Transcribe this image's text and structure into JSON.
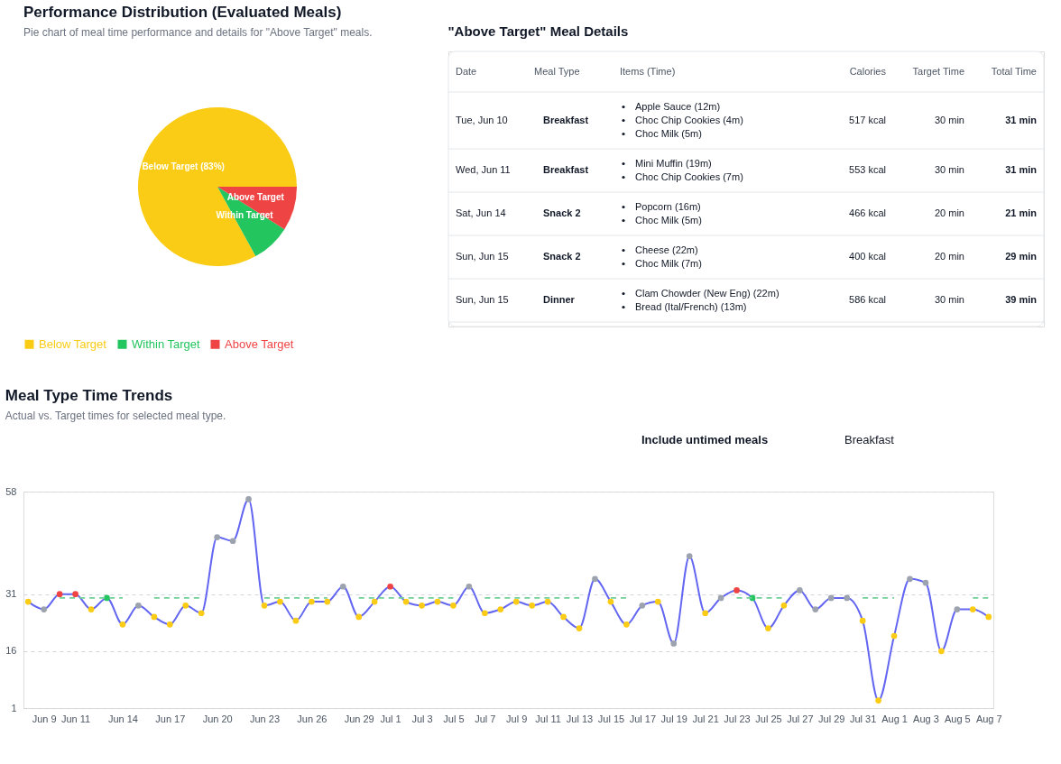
{
  "chart_data": [
    {
      "type": "pie",
      "title": "Performance Distribution (Evaluated Meals)",
      "subtitle": "Pie chart of meal time performance and details for \"Above Target\" meals.",
      "categories": [
        "Below Target",
        "Within Target",
        "Above Target"
      ],
      "values": [
        83,
        8,
        9
      ],
      "colors": [
        "#facc15",
        "#22c55e",
        "#ef4444"
      ],
      "value_labels": [
        "Below Target (83%)",
        "Within Target",
        "Above Target"
      ],
      "legend": "bottom"
    },
    {
      "type": "other",
      "title": "\"Above Target\" Meal Details",
      "categories": [
        "Date",
        "Meal Type",
        "Items (Time)",
        "Calories",
        "Target Time",
        "Total Time"
      ],
      "cell_labels": [
        [
          "Tue, Jun 10",
          "Breakfast",
          [
            "Apple Sauce (12m)",
            "Choc Chip Cookies (4m)",
            "Choc Milk (5m)"
          ],
          "517 kcal",
          "30 min",
          "31 min"
        ],
        [
          "Wed, Jun 11",
          "Breakfast",
          [
            "Mini Muffin (19m)",
            "Choc Chip Cookies (7m)"
          ],
          "553 kcal",
          "30 min",
          "31 min"
        ],
        [
          "Sat, Jun 14",
          "Snack 2",
          [
            "Popcorn (16m)",
            "Choc Milk (5m)"
          ],
          "466 kcal",
          "20 min",
          "21 min"
        ],
        [
          "Sun, Jun 15",
          "Snack 2",
          [
            "Cheese (22m)",
            "Choc Milk (7m)"
          ],
          "400 kcal",
          "20 min",
          "29 min"
        ],
        [
          "Sun, Jun 15",
          "Dinner",
          [
            "Clam Chowder (New Eng) (22m)",
            "Bread (Ital/French) (13m)"
          ],
          "586 kcal",
          "30 min",
          "39 min"
        ]
      ]
    },
    {
      "type": "line",
      "title": "Meal Type Time Trends",
      "subtitle": "Actual vs. Target times for selected meal type.",
      "annotations": [
        "Include untimed meals",
        "Breakfast"
      ],
      "categories": [
        null,
        "Jun 9",
        null,
        "Jun 11",
        null,
        null,
        "Jun 14",
        null,
        null,
        "Jun 17",
        null,
        null,
        "Jun 20",
        null,
        null,
        "Jun 23",
        null,
        null,
        "Jun 26",
        null,
        null,
        "Jun 29",
        null,
        "Jul 1",
        null,
        "Jul 3",
        null,
        "Jul 5",
        null,
        "Jul 7",
        null,
        "Jul 9",
        null,
        "Jul 11",
        null,
        "Jul 13",
        null,
        "Jul 15",
        null,
        "Jul 17",
        null,
        "Jul 19",
        null,
        "Jul 21",
        null,
        "Jul 23",
        null,
        "Jul 25",
        null,
        "Jul 27",
        null,
        "Jul 29",
        null,
        "Jul 31",
        null,
        "Aug 1",
        null,
        "Aug 3",
        null,
        "Aug 5",
        null,
        "Aug 7"
      ],
      "ylim": [
        1,
        58
      ],
      "yticks": [
        1,
        16,
        31,
        58
      ],
      "grid": "y",
      "series": [
        {
          "color": "#6366f1",
          "marker": "circle",
          "values": [
            29,
            27,
            31,
            31,
            27,
            30,
            23,
            28,
            25,
            23,
            28,
            26,
            46,
            45,
            56,
            28,
            29,
            24,
            29,
            29,
            33,
            25,
            29,
            33,
            29,
            28,
            29,
            28,
            33,
            26,
            27,
            29,
            28,
            29,
            25,
            22,
            35,
            29,
            23,
            28,
            29,
            18,
            41,
            26,
            30,
            32,
            30,
            22,
            28,
            32,
            27,
            30,
            30,
            24,
            3,
            20,
            35,
            34,
            16,
            27,
            27,
            25
          ],
          "colors": [
            "#facc15",
            "#9ca3af",
            "#ef4444",
            "#ef4444",
            "#facc15",
            "#22c55e",
            "#facc15",
            "#9ca3af",
            "#facc15",
            "#facc15",
            "#facc15",
            "#facc15",
            "#9ca3af",
            "#9ca3af",
            "#9ca3af",
            "#facc15",
            "#facc15",
            "#facc15",
            "#facc15",
            "#facc15",
            "#9ca3af",
            "#facc15",
            "#facc15",
            "#ef4444",
            "#facc15",
            "#facc15",
            "#facc15",
            "#facc15",
            "#9ca3af",
            "#facc15",
            "#facc15",
            "#facc15",
            "#facc15",
            "#facc15",
            "#facc15",
            "#facc15",
            "#9ca3af",
            "#facc15",
            "#facc15",
            "#9ca3af",
            "#facc15",
            "#9ca3af",
            "#9ca3af",
            "#facc15",
            "#9ca3af",
            "#ef4444",
            "#22c55e",
            "#facc15",
            "#facc15",
            "#9ca3af",
            "#9ca3af",
            "#9ca3af",
            "#9ca3af",
            "#facc15",
            "#facc15",
            "#facc15",
            "#9ca3af",
            "#9ca3af",
            "#facc15",
            "#9ca3af",
            "#facc15",
            "#facc15"
          ]
        },
        {
          "color": "#6fcf97",
          "line_style": "dashed",
          "values": [
            null,
            null,
            30,
            30,
            30,
            30,
            30,
            null,
            30,
            30,
            30,
            30,
            null,
            null,
            null,
            30,
            30,
            30,
            30,
            30,
            null,
            30,
            30,
            30,
            30,
            30,
            30,
            30,
            null,
            30,
            30,
            30,
            30,
            30,
            30,
            30,
            null,
            30,
            30,
            null,
            null,
            null,
            null,
            null,
            null,
            30,
            30,
            30,
            30,
            null,
            null,
            null,
            null,
            30,
            30,
            30,
            null,
            null,
            null,
            null,
            30,
            30
          ]
        }
      ]
    }
  ]
}
